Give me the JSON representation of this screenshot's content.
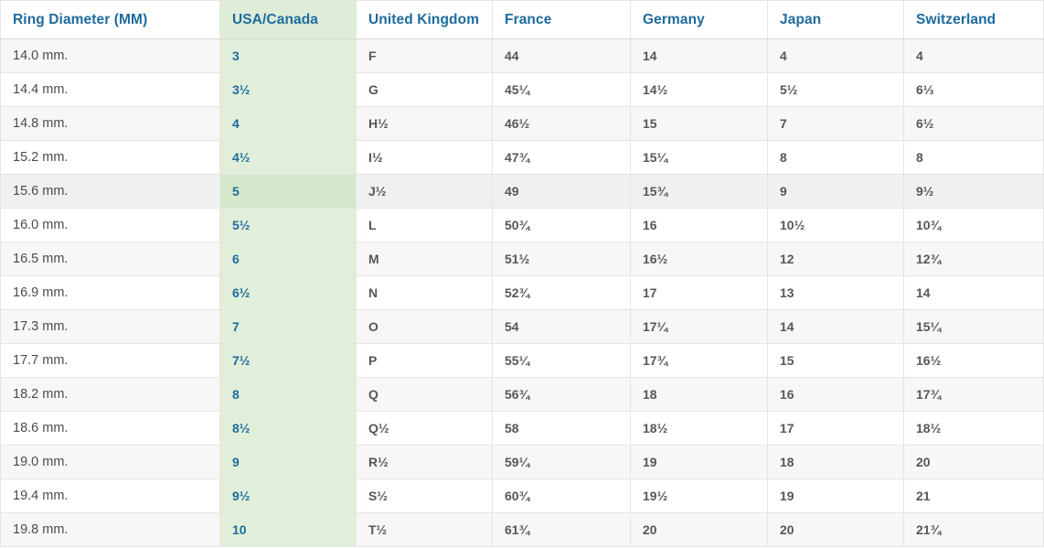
{
  "colors": {
    "header_text_blue": "#1d6b9e",
    "usa_canada_text_blue": "#1d6b9e",
    "body_text_gray": "#55575a",
    "diameter_text_gray": "#4a4b4e",
    "row_stripe_gray": "#f7f7f7",
    "highlight_green": "#e1efda",
    "highlight_green_hover": "#d5e8cb",
    "header_green": "#deedd7",
    "border_gray": "#e5e5e5"
  },
  "chart_data": {
    "type": "table",
    "columns": [
      {
        "key": "diameter",
        "label": "Ring Diameter (MM)"
      },
      {
        "key": "usa_canada",
        "label": "USA/Canada"
      },
      {
        "key": "uk",
        "label": "United Kingdom"
      },
      {
        "key": "france",
        "label": "France"
      },
      {
        "key": "germany",
        "label": "Germany"
      },
      {
        "key": "japan",
        "label": "Japan"
      },
      {
        "key": "switzerland",
        "label": "Switzerland"
      }
    ],
    "highlighted_column_key": "usa_canada",
    "highlighted_row_index": 4,
    "rows": [
      [
        "14.0 mm.",
        "3",
        "F",
        "44",
        "14",
        "4",
        "4"
      ],
      [
        "14.4 mm.",
        "3½",
        "G",
        "45¼",
        "14½",
        "5½",
        "6⅓"
      ],
      [
        "14.8 mm.",
        "4",
        "H½",
        "46½",
        "15",
        "7",
        "6½"
      ],
      [
        "15.2 mm.",
        "4½",
        "I½",
        "47¾",
        "15¼",
        "8",
        "8"
      ],
      [
        "15.6 mm.",
        "5",
        "J½",
        "49",
        "15¾",
        "9",
        "9½"
      ],
      [
        "16.0 mm.",
        "5½",
        "L",
        "50¾",
        "16",
        "10½",
        "10¾"
      ],
      [
        "16.5 mm.",
        "6",
        "M",
        "51½",
        "16½",
        "12",
        "12¾"
      ],
      [
        "16.9 mm.",
        "6½",
        "N",
        "52¾",
        "17",
        "13",
        "14"
      ],
      [
        "17.3 mm.",
        "7",
        "O",
        "54",
        "17¼",
        "14",
        "15¼"
      ],
      [
        "17.7 mm.",
        "7½",
        "P",
        "55¼",
        "17¾",
        "15",
        "16½"
      ],
      [
        "18.2 mm.",
        "8",
        "Q",
        "56¾",
        "18",
        "16",
        "17¾"
      ],
      [
        "18.6 mm.",
        "8½",
        "Q½",
        "58",
        "18½",
        "17",
        "18½"
      ],
      [
        "19.0 mm.",
        "9",
        "R½",
        "59¼",
        "19",
        "18",
        "20"
      ],
      [
        "19.4 mm.",
        "9½",
        "S½",
        "60¾",
        "19½",
        "19",
        "21"
      ],
      [
        "19.8 mm.",
        "10",
        "T½",
        "61¾",
        "20",
        "20",
        "21¾"
      ]
    ]
  }
}
